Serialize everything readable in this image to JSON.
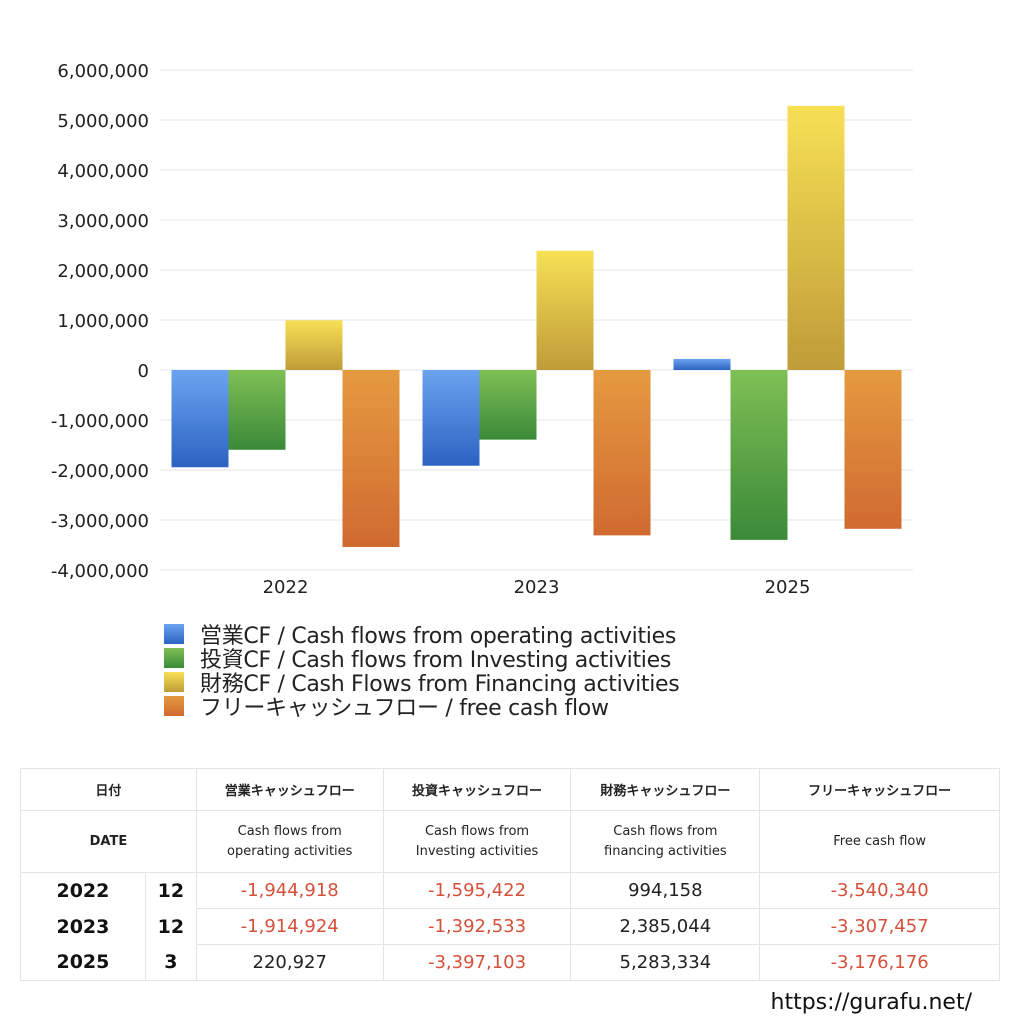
{
  "chart_data": {
    "type": "bar",
    "title": "",
    "xlabel": "",
    "ylabel": "",
    "categories": [
      "2022",
      "2023",
      "2025"
    ],
    "ylim": [
      -4000000,
      6000000
    ],
    "yticks": [
      6000000,
      5000000,
      4000000,
      3000000,
      2000000,
      1000000,
      0,
      -1000000,
      -2000000,
      -3000000,
      -4000000
    ],
    "ytick_labels": [
      "6,000,000",
      "5,000,000",
      "4,000,000",
      "3,000,000",
      "2,000,000",
      "1,000,000",
      "0",
      "-1,000,000",
      "-2,000,000",
      "-3,000,000",
      "-4,000,000"
    ],
    "grid": true,
    "legend_position": "bottom",
    "series": [
      {
        "name": "営業CF / Cash flows from operating activities",
        "color_top": "#6aa4f0",
        "color_bottom": "#2c63c2",
        "values": [
          -1944918,
          -1914924,
          220927
        ]
      },
      {
        "name": "投資CF / Cash flows from Investing activities",
        "color_top": "#7fbf55",
        "color_bottom": "#3a8a38",
        "values": [
          -1595422,
          -1392533,
          -3397103
        ]
      },
      {
        "name": "財務CF / Cash Flows from Financing activities",
        "color_top": "#f7e055",
        "color_bottom": "#bf9c38",
        "values": [
          994158,
          2385044,
          5283334
        ]
      },
      {
        "name": "フリーキャッシュフロー / free cash flow",
        "color_top": "#e59a40",
        "color_bottom": "#d06a30",
        "values": [
          -3540340,
          -3307457,
          -3176176
        ]
      }
    ]
  },
  "legend": {
    "items": [
      {
        "label": "営業CF / Cash flows from operating activities",
        "color": "#4a86dc"
      },
      {
        "label": "投資CF / Cash flows from Investing activities",
        "color": "#58a347"
      },
      {
        "label": "財務CF / Cash Flows from Financing activities",
        "color": "#dcc147"
      },
      {
        "label": "フリーキャッシュフロー / free cash flow",
        "color": "#dc8238"
      }
    ]
  },
  "table": {
    "header_jp": {
      "date": "日付",
      "operating": "営業キャッシュフロー",
      "investing": "投資キャッシュフロー",
      "financing": "財務キャッシュフロー",
      "free": "フリーキャッシュフロー"
    },
    "header_en": {
      "date": "DATE",
      "operating_1": "Cash flows from",
      "operating_2": "operating activities",
      "investing_1": "Cash flows from",
      "investing_2": "Investing activities",
      "financing_1": "Cash flows from",
      "financing_2": "financing activities",
      "free": "Free cash flow"
    },
    "rows": [
      {
        "year": "2022",
        "month": "12",
        "operating": "-1,944,918",
        "investing": "-1,595,422",
        "financing": "994,158",
        "free": "-3,540,340"
      },
      {
        "year": "2023",
        "month": "12",
        "operating": "-1,914,924",
        "investing": "-1,392,533",
        "financing": "2,385,044",
        "free": "-3,307,457"
      },
      {
        "year": "2025",
        "month": "3",
        "operating": "220,927",
        "investing": "-3,397,103",
        "financing": "5,283,334",
        "free": "-3,176,176"
      }
    ]
  },
  "footer": {
    "url": "https://gurafu.net/"
  }
}
